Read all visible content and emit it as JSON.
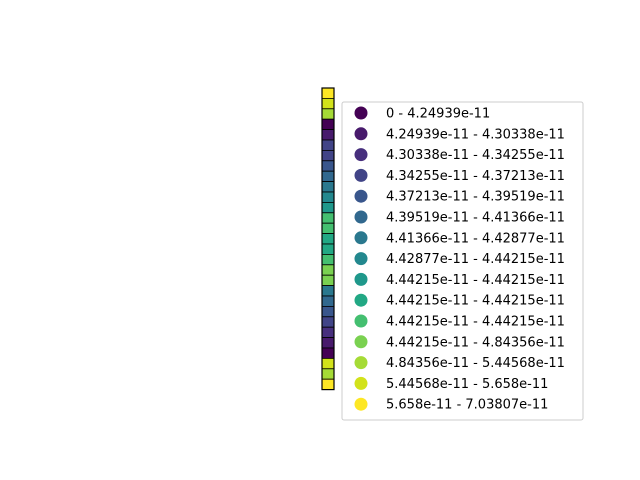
{
  "chart_data": {
    "type": "choropleth-map",
    "title": "",
    "xlabel": "",
    "ylabel": "",
    "grid": false,
    "legend_position": "right",
    "colormap": "viridis",
    "classes": [
      {
        "label": "0 - 4.24939e-11",
        "lower": 0,
        "upper": 4.24939e-11,
        "color": "#440154"
      },
      {
        "label": "4.24939e-11 - 4.30338e-11",
        "lower": 4.24939e-11,
        "upper": 4.30338e-11,
        "color": "#481a6c"
      },
      {
        "label": "4.30338e-11 - 4.34255e-11",
        "lower": 4.30338e-11,
        "upper": 4.34255e-11,
        "color": "#472f7d"
      },
      {
        "label": "4.34255e-11 - 4.37213e-11",
        "lower": 4.34255e-11,
        "upper": 4.37213e-11,
        "color": "#414487"
      },
      {
        "label": "4.37213e-11 - 4.39519e-11",
        "lower": 4.37213e-11,
        "upper": 4.39519e-11,
        "color": "#39568c"
      },
      {
        "label": "4.39519e-11 - 4.41366e-11",
        "lower": 4.39519e-11,
        "upper": 4.41366e-11,
        "color": "#31688e"
      },
      {
        "label": "4.41366e-11 - 4.42877e-11",
        "lower": 4.41366e-11,
        "upper": 4.42877e-11,
        "color": "#2a788e"
      },
      {
        "label": "4.42877e-11 - 4.44215e-11",
        "lower": 4.42877e-11,
        "upper": 4.44215e-11,
        "color": "#23888e"
      },
      {
        "label": "4.44215e-11 - 4.44215e-11",
        "lower": 4.44215e-11,
        "upper": 4.44215e-11,
        "color": "#1f988b"
      },
      {
        "label": "4.44215e-11 - 4.44215e-11",
        "lower": 4.44215e-11,
        "upper": 4.44215e-11,
        "color": "#22a884"
      },
      {
        "label": "4.44215e-11 - 4.44215e-11",
        "lower": 4.44215e-11,
        "upper": 4.44215e-11,
        "color": "#44bf70"
      },
      {
        "label": "4.44215e-11 - 4.84356e-11",
        "lower": 4.44215e-11,
        "upper": 4.84356e-11,
        "color": "#7ad151"
      },
      {
        "label": "4.84356e-11 - 5.44568e-11",
        "lower": 4.84356e-11,
        "upper": 5.44568e-11,
        "color": "#a5db36"
      },
      {
        "label": "5.44568e-11 - 5.658e-11",
        "lower": 5.44568e-11,
        "upper": 5.658e-11,
        "color": "#d2e21b"
      },
      {
        "label": "5.658e-11 - 7.03807e-11",
        "lower": 5.658e-11,
        "upper": 7.03807e-11,
        "color": "#fde725"
      }
    ],
    "cells_top_to_bottom_class_index": [
      14,
      13,
      12,
      0,
      1,
      3,
      3,
      4,
      5,
      6,
      7,
      8,
      10,
      10,
      9,
      9,
      10,
      11,
      11,
      6,
      5,
      4,
      3,
      2,
      1,
      0,
      13,
      12,
      14
    ]
  }
}
